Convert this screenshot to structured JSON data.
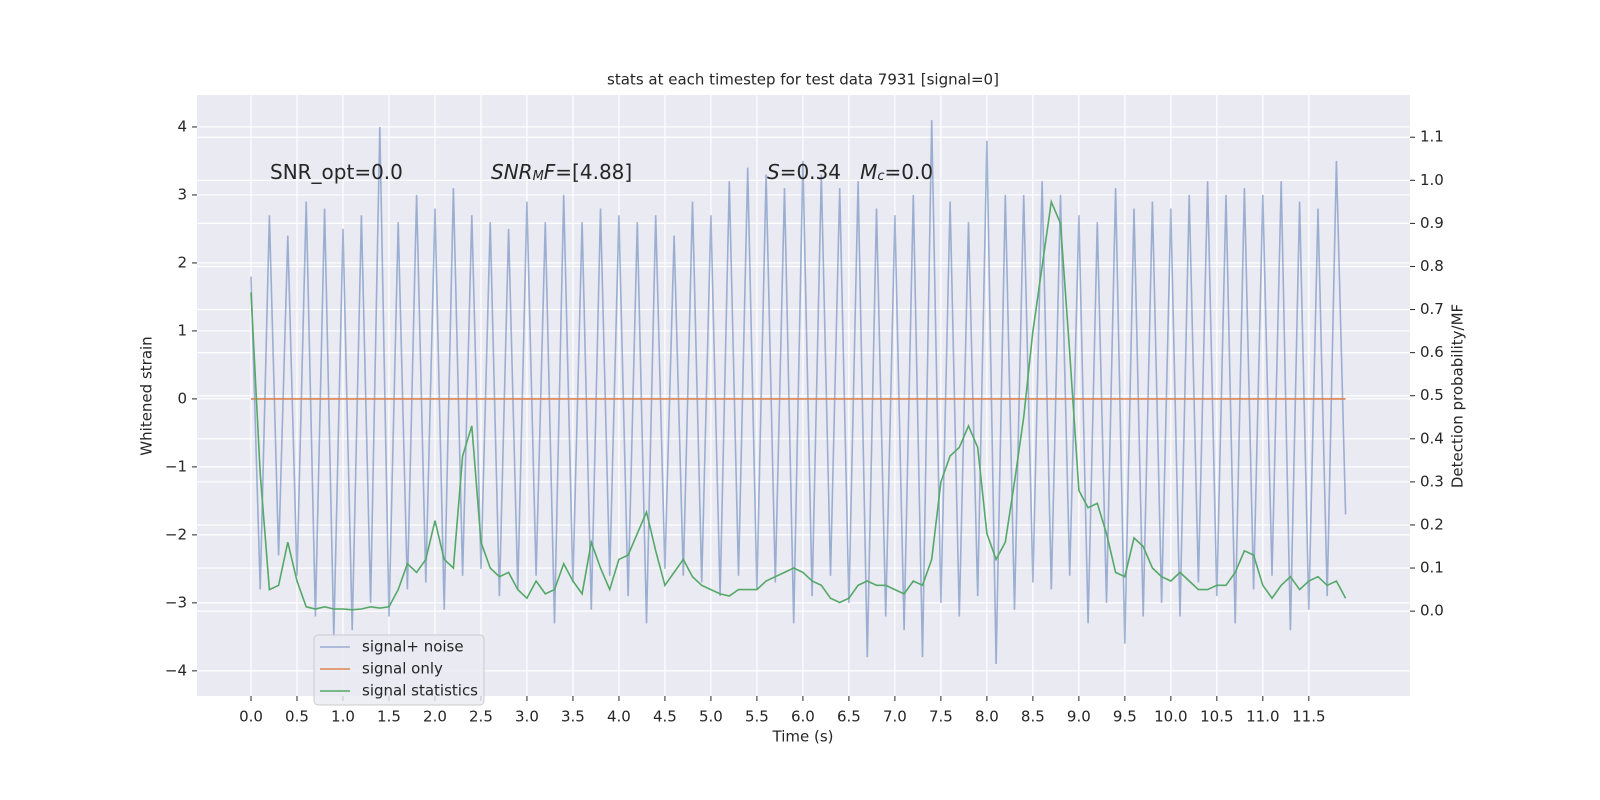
{
  "chart_data": {
    "type": "line",
    "title": "stats at each timestep for test data 7931 [signal=0]",
    "xlabel": "Time (s)",
    "ylabel": "Whitened strain",
    "y2label": "Detection probability/MF",
    "annotations": [
      [
        {
          "text": "SNR_opt=0.0"
        }
      ],
      [
        {
          "text": "SNR",
          "italic": true
        },
        {
          "text": "M",
          "italic": true,
          "sub": true
        },
        {
          "text": "F",
          "italic": true
        },
        {
          "text": "=[4.88]"
        }
      ],
      [
        {
          "text": "S",
          "italic": true
        },
        {
          "text": "=0.34   "
        },
        {
          "text": "M",
          "italic": true
        },
        {
          "text": "c",
          "italic": true,
          "sub": true
        },
        {
          "text": "=0.0"
        }
      ]
    ],
    "x": [
      0.0,
      0.1,
      0.2,
      0.3,
      0.4,
      0.5,
      0.6,
      0.7,
      0.8,
      0.9,
      1.0,
      1.1,
      1.2,
      1.3,
      1.4,
      1.5,
      1.6,
      1.7,
      1.8,
      1.9,
      2.0,
      2.1,
      2.2,
      2.3,
      2.4,
      2.5,
      2.6,
      2.7,
      2.8,
      2.9,
      3.0,
      3.1,
      3.2,
      3.3,
      3.4,
      3.5,
      3.6,
      3.7,
      3.8,
      3.9,
      4.0,
      4.1,
      4.2,
      4.3,
      4.4,
      4.5,
      4.6,
      4.7,
      4.8,
      4.9,
      5.0,
      5.1,
      5.2,
      5.3,
      5.4,
      5.5,
      5.6,
      5.7,
      5.8,
      5.9,
      6.0,
      6.1,
      6.2,
      6.3,
      6.4,
      6.5,
      6.6,
      6.7,
      6.8,
      6.9,
      7.0,
      7.1,
      7.2,
      7.3,
      7.4,
      7.5,
      7.6,
      7.7,
      7.8,
      7.9,
      8.0,
      8.1,
      8.2,
      8.3,
      8.4,
      8.5,
      8.6,
      8.7,
      8.8,
      8.9,
      9.0,
      9.1,
      9.2,
      9.3,
      9.4,
      9.5,
      9.6,
      9.7,
      9.8,
      9.9,
      10.0,
      10.1,
      10.2,
      10.3,
      10.4,
      10.5,
      10.6,
      10.7,
      10.8,
      10.9,
      11.0,
      11.1,
      11.2,
      11.3,
      11.4,
      11.5,
      11.6,
      11.7,
      11.8,
      11.9
    ],
    "series": [
      {
        "name": "signal+ noise",
        "color": "#4c72b0",
        "opacity": 0.5,
        "values": [
          1.8,
          -2.8,
          2.7,
          -2.3,
          2.4,
          -2.6,
          2.9,
          -3.2,
          2.8,
          -3.5,
          2.5,
          -3.4,
          2.7,
          -3.0,
          4.0,
          -3.2,
          2.6,
          -2.8,
          3.0,
          -2.7,
          2.8,
          -3.1,
          3.1,
          -2.6,
          2.7,
          -2.5,
          2.6,
          -2.9,
          2.5,
          -2.8,
          2.9,
          -2.6,
          2.6,
          -3.3,
          3.0,
          -2.7,
          2.6,
          -3.1,
          2.8,
          -2.6,
          2.7,
          -2.9,
          2.6,
          -3.3,
          2.7,
          -2.5,
          2.4,
          -2.6,
          2.9,
          -2.7,
          2.7,
          -2.9,
          3.2,
          -2.6,
          3.4,
          -2.8,
          3.3,
          -2.7,
          3.1,
          -3.3,
          3.5,
          -2.9,
          3.3,
          -2.6,
          3.1,
          -3.0,
          3.2,
          -3.8,
          2.8,
          -3.2,
          2.7,
          -3.4,
          3.0,
          -3.8,
          4.1,
          -3.0,
          2.9,
          -3.2,
          2.6,
          -2.9,
          3.8,
          -3.9,
          3.0,
          -3.1,
          3.0,
          -2.7,
          3.2,
          -2.8,
          3.0,
          -2.6,
          2.7,
          -3.3,
          2.6,
          -3.0,
          3.1,
          -3.6,
          2.8,
          -3.2,
          2.9,
          -3.0,
          2.8,
          -3.2,
          3.0,
          -2.7,
          3.2,
          -2.9,
          3.0,
          -3.3,
          3.1,
          -2.8,
          3.0,
          -2.6,
          3.2,
          -3.4,
          2.9,
          -3.1,
          2.8,
          -2.9,
          3.5,
          -1.7
        ]
      },
      {
        "name": "signal only",
        "color": "#dd8452",
        "values": [
          0,
          0,
          0,
          0,
          0,
          0,
          0,
          0,
          0,
          0,
          0,
          0,
          0,
          0,
          0,
          0,
          0,
          0,
          0,
          0,
          0,
          0,
          0,
          0,
          0,
          0,
          0,
          0,
          0,
          0,
          0,
          0,
          0,
          0,
          0,
          0,
          0,
          0,
          0,
          0,
          0,
          0,
          0,
          0,
          0,
          0,
          0,
          0,
          0,
          0,
          0,
          0,
          0,
          0,
          0,
          0,
          0,
          0,
          0,
          0,
          0,
          0,
          0,
          0,
          0,
          0,
          0,
          0,
          0,
          0,
          0,
          0,
          0,
          0,
          0,
          0,
          0,
          0,
          0,
          0,
          0,
          0,
          0,
          0,
          0,
          0,
          0,
          0,
          0,
          0,
          0,
          0,
          0,
          0,
          0,
          0,
          0,
          0,
          0,
          0,
          0,
          0,
          0,
          0,
          0,
          0,
          0,
          0,
          0,
          0,
          0,
          0,
          0,
          0,
          0,
          0,
          0,
          0,
          0,
          0
        ]
      },
      {
        "name": "signal statistics",
        "color": "#55a868",
        "axis": "y2",
        "values": [
          0.74,
          0.32,
          0.05,
          0.06,
          0.16,
          0.07,
          0.01,
          0.005,
          0.01,
          0.005,
          0.005,
          0.003,
          0.005,
          0.01,
          0.007,
          0.01,
          0.05,
          0.11,
          0.09,
          0.12,
          0.21,
          0.12,
          0.1,
          0.36,
          0.43,
          0.16,
          0.1,
          0.08,
          0.09,
          0.05,
          0.03,
          0.07,
          0.04,
          0.05,
          0.11,
          0.07,
          0.04,
          0.16,
          0.1,
          0.05,
          0.12,
          0.13,
          0.18,
          0.23,
          0.14,
          0.06,
          0.09,
          0.12,
          0.08,
          0.06,
          0.05,
          0.04,
          0.035,
          0.05,
          0.05,
          0.05,
          0.07,
          0.08,
          0.09,
          0.1,
          0.09,
          0.07,
          0.06,
          0.03,
          0.02,
          0.03,
          0.06,
          0.07,
          0.06,
          0.06,
          0.05,
          0.04,
          0.07,
          0.06,
          0.12,
          0.3,
          0.36,
          0.38,
          0.43,
          0.38,
          0.18,
          0.12,
          0.16,
          0.3,
          0.45,
          0.65,
          0.8,
          0.95,
          0.9,
          0.6,
          0.28,
          0.24,
          0.25,
          0.18,
          0.09,
          0.08,
          0.17,
          0.15,
          0.1,
          0.08,
          0.07,
          0.09,
          0.07,
          0.05,
          0.05,
          0.06,
          0.06,
          0.09,
          0.14,
          0.13,
          0.06,
          0.03,
          0.06,
          0.08,
          0.05,
          0.07,
          0.08,
          0.06,
          0.07,
          0.03
        ]
      }
    ],
    "xlim": [
      -0.587,
      12.6
    ],
    "ylim": [
      -4.37,
      4.47
    ],
    "y2lim": [
      -0.197,
      1.198
    ],
    "xticks": [
      {
        "value": 0,
        "label": "0.0"
      },
      {
        "value": 0.5,
        "label": "0.5"
      },
      {
        "value": 1,
        "label": "1.0"
      },
      {
        "value": 1.5,
        "label": "1.5"
      },
      {
        "value": 2,
        "label": "2.0"
      },
      {
        "value": 2.5,
        "label": "2.5"
      },
      {
        "value": 3,
        "label": "3.0"
      },
      {
        "value": 3.5,
        "label": "3.5"
      },
      {
        "value": 4,
        "label": "4.0"
      },
      {
        "value": 4.5,
        "label": "4.5"
      },
      {
        "value": 5,
        "label": "5.0"
      },
      {
        "value": 5.5,
        "label": "5.5"
      },
      {
        "value": 6,
        "label": "6.0"
      },
      {
        "value": 6.5,
        "label": "6.5"
      },
      {
        "value": 7,
        "label": "7.0"
      },
      {
        "value": 7.5,
        "label": "7.5"
      },
      {
        "value": 8,
        "label": "8.0"
      },
      {
        "value": 8.5,
        "label": "8.5"
      },
      {
        "value": 9,
        "label": "9.0"
      },
      {
        "value": 9.5,
        "label": "9.5"
      },
      {
        "value": 10,
        "label": "10.0"
      },
      {
        "value": 10.5,
        "label": "10.5"
      },
      {
        "value": 11,
        "label": "11.0"
      },
      {
        "value": 11.5,
        "label": "11.5"
      }
    ],
    "yticks": [
      {
        "value": -4,
        "label": "−4"
      },
      {
        "value": -3,
        "label": "−3"
      },
      {
        "value": -2,
        "label": "−2"
      },
      {
        "value": -1,
        "label": "−1"
      },
      0,
      1,
      2,
      3,
      4
    ],
    "y2ticks": [
      {
        "value": 0,
        "label": "0.0"
      },
      {
        "value": 0.1,
        "label": "0.1"
      },
      {
        "value": 0.2,
        "label": "0.2"
      },
      {
        "value": 0.3,
        "label": "0.3"
      },
      {
        "value": 0.4,
        "label": "0.4"
      },
      {
        "value": 0.5,
        "label": "0.5"
      },
      {
        "value": 0.6,
        "label": "0.6"
      },
      {
        "value": 0.7,
        "label": "0.7"
      },
      {
        "value": 0.8,
        "label": "0.8"
      },
      {
        "value": 0.9,
        "label": "0.9"
      },
      {
        "value": 1,
        "label": "1.0"
      },
      {
        "value": 1.1,
        "label": "1.1"
      }
    ],
    "grid": true,
    "legend": "lower left"
  }
}
